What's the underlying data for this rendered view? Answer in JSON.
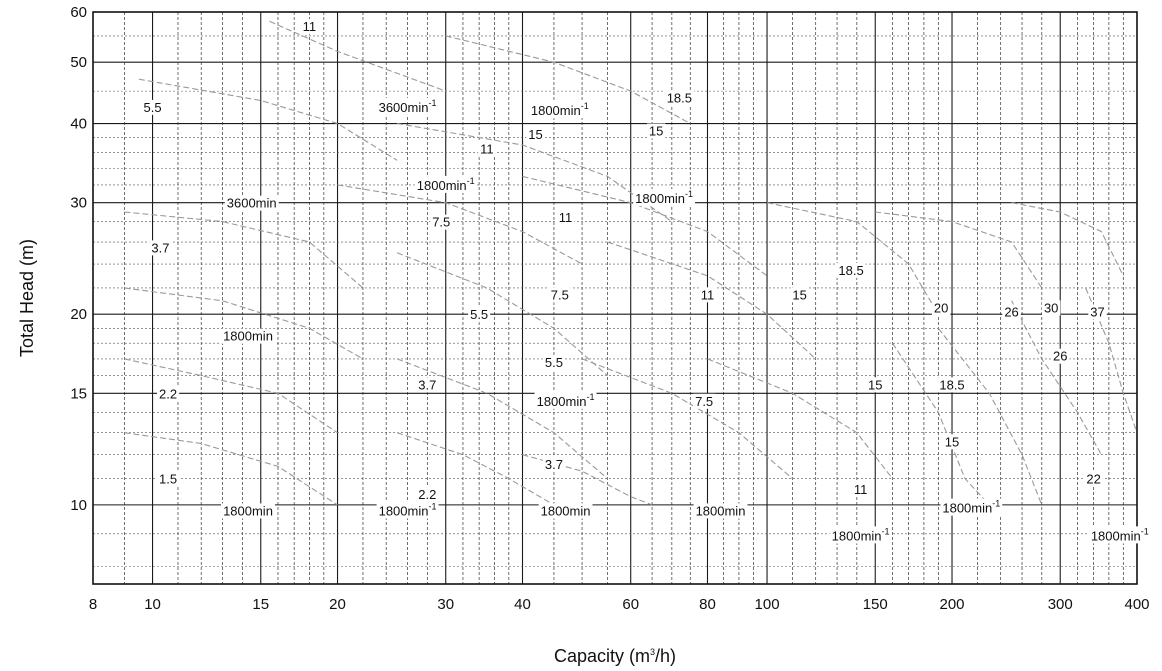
{
  "chart_data": {
    "type": "line",
    "title": "",
    "xlabel": "Capacity (m³/h)",
    "xlabel_parts": {
      "main": "Capacity  (m",
      "sup": "3",
      "tail": "/h)"
    },
    "ylabel": "Total Head  (m)",
    "x_scale": "log",
    "y_scale": "log",
    "xlim": [
      8,
      400
    ],
    "ylim": [
      7.5,
      60
    ],
    "grid": true,
    "x_ticks": [
      8,
      10,
      15,
      20,
      30,
      40,
      60,
      80,
      100,
      150,
      200,
      300,
      400
    ],
    "x_tick_labels": [
      "8",
      "10",
      "15",
      "20",
      "30",
      "40",
      "60",
      "80",
      "100",
      "150",
      "200",
      "300",
      "400"
    ],
    "y_ticks": [
      10,
      15,
      20,
      30,
      40,
      50,
      60
    ],
    "y_tick_labels": [
      "10",
      "15",
      "20",
      "30",
      "40",
      "50",
      "60"
    ],
    "annotations": [
      {
        "text": "11",
        "x": 18,
        "y": 57
      },
      {
        "text": "5.5",
        "x": 10,
        "y": 42.5
      },
      {
        "text": "3600min",
        "sup": "-1",
        "x": 26,
        "y": 42.5
      },
      {
        "text": "1800min",
        "sup": "-1",
        "x": 46,
        "y": 42
      },
      {
        "text": "18.5",
        "x": 72,
        "y": 44
      },
      {
        "text": "15",
        "x": 42,
        "y": 38.5
      },
      {
        "text": "15",
        "x": 66,
        "y": 39
      },
      {
        "text": "11",
        "x": 35,
        "y": 36.5
      },
      {
        "text": "1800min",
        "sup": "-1",
        "x": 30,
        "y": 32
      },
      {
        "text": "3600min",
        "x": 14.5,
        "y": 30
      },
      {
        "text": "1800min",
        "sup": "-1",
        "x": 68,
        "y": 30.5
      },
      {
        "text": "7.5",
        "x": 29.5,
        "y": 28
      },
      {
        "text": "11",
        "x": 47,
        "y": 28.5
      },
      {
        "text": "3.7",
        "x": 10.3,
        "y": 25.5
      },
      {
        "text": "18.5",
        "x": 137,
        "y": 23.5
      },
      {
        "text": "7.5",
        "x": 46,
        "y": 21.5
      },
      {
        "text": "11",
        "x": 80,
        "y": 21.5
      },
      {
        "text": "15",
        "x": 113,
        "y": 21.5
      },
      {
        "text": "20",
        "x": 192,
        "y": 20.5
      },
      {
        "text": "26",
        "x": 250,
        "y": 20.2
      },
      {
        "text": "30",
        "x": 290,
        "y": 20.5
      },
      {
        "text": "37",
        "x": 345,
        "y": 20.2
      },
      {
        "text": "5.5",
        "x": 34,
        "y": 20
      },
      {
        "text": "1800min",
        "x": 14.3,
        "y": 18.5
      },
      {
        "text": "5.5",
        "x": 45,
        "y": 16.8
      },
      {
        "text": "26",
        "x": 300,
        "y": 17.2
      },
      {
        "text": "3.7",
        "x": 28,
        "y": 15.5
      },
      {
        "text": "15",
        "x": 150,
        "y": 15.5
      },
      {
        "text": "18.5",
        "x": 200,
        "y": 15.5
      },
      {
        "text": "2.2",
        "x": 10.6,
        "y": 15
      },
      {
        "text": "1800min",
        "sup": "-1",
        "x": 47,
        "y": 14.6
      },
      {
        "text": "7.5",
        "x": 79,
        "y": 14.6
      },
      {
        "text": "15",
        "x": 200,
        "y": 12.6
      },
      {
        "text": "3.7",
        "x": 45,
        "y": 11.6
      },
      {
        "text": "1.5",
        "x": 10.6,
        "y": 11
      },
      {
        "text": "22",
        "x": 340,
        "y": 11
      },
      {
        "text": "2.2",
        "x": 28,
        "y": 10.4
      },
      {
        "text": "11",
        "x": 142,
        "y": 10.6
      },
      {
        "text": "1800min",
        "x": 14.3,
        "y": 9.8
      },
      {
        "text": "1800min",
        "sup": "-1",
        "x": 26,
        "y": 9.8
      },
      {
        "text": "1800min",
        "x": 47,
        "y": 9.8
      },
      {
        "text": "1800min",
        "x": 84,
        "y": 9.8
      },
      {
        "text": "1800min",
        "sup": "-1",
        "x": 215,
        "y": 9.9
      },
      {
        "text": "1800min",
        "sup": "-1",
        "x": 142,
        "y": 8.95
      },
      {
        "text": "1800min",
        "sup": "-1",
        "x": 375,
        "y": 8.95
      }
    ],
    "performance_curves": [
      {
        "points": [
          [
            15.5,
            58
          ],
          [
            20,
            52
          ],
          [
            30,
            45
          ]
        ]
      },
      {
        "points": [
          [
            9.5,
            47
          ],
          [
            15,
            43.5
          ],
          [
            20,
            40
          ],
          [
            25,
            35
          ]
        ]
      },
      {
        "points": [
          [
            30,
            55
          ],
          [
            45,
            50
          ],
          [
            60,
            45
          ],
          [
            75,
            40
          ]
        ]
      },
      {
        "points": [
          [
            25,
            40
          ],
          [
            40,
            37
          ],
          [
            55,
            33
          ],
          [
            70,
            28
          ]
        ]
      },
      {
        "points": [
          [
            9,
            29
          ],
          [
            13,
            28
          ],
          [
            18,
            26
          ],
          [
            22,
            22
          ]
        ]
      },
      {
        "points": [
          [
            20,
            32
          ],
          [
            30,
            30
          ],
          [
            40,
            27
          ],
          [
            50,
            24
          ]
        ]
      },
      {
        "points": [
          [
            40,
            33
          ],
          [
            60,
            30
          ],
          [
            80,
            27
          ],
          [
            100,
            23
          ]
        ]
      },
      {
        "points": [
          [
            9,
            22
          ],
          [
            13,
            21
          ],
          [
            18,
            19
          ],
          [
            22,
            17
          ]
        ]
      },
      {
        "points": [
          [
            25,
            25
          ],
          [
            35,
            22
          ],
          [
            45,
            19
          ],
          [
            55,
            16
          ]
        ]
      },
      {
        "points": [
          [
            55,
            26
          ],
          [
            80,
            23
          ],
          [
            100,
            20
          ],
          [
            120,
            17
          ]
        ]
      },
      {
        "points": [
          [
            100,
            30
          ],
          [
            140,
            28
          ],
          [
            170,
            24
          ],
          [
            190,
            20
          ]
        ]
      },
      {
        "points": [
          [
            9,
            17
          ],
          [
            12,
            16
          ],
          [
            16,
            15
          ],
          [
            20,
            13
          ]
        ]
      },
      {
        "points": [
          [
            25,
            17
          ],
          [
            35,
            15
          ],
          [
            45,
            13
          ],
          [
            55,
            11
          ]
        ]
      },
      {
        "points": [
          [
            50,
            17
          ],
          [
            70,
            15
          ],
          [
            90,
            13
          ],
          [
            110,
            11
          ]
        ]
      },
      {
        "points": [
          [
            80,
            17
          ],
          [
            110,
            15
          ],
          [
            140,
            13
          ],
          [
            160,
            11
          ]
        ]
      },
      {
        "points": [
          [
            9,
            13
          ],
          [
            12,
            12.5
          ],
          [
            16,
            11.5
          ],
          [
            20,
            10
          ]
        ]
      },
      {
        "points": [
          [
            25,
            13
          ],
          [
            32,
            12
          ],
          [
            38,
            11
          ],
          [
            45,
            10
          ]
        ]
      },
      {
        "points": [
          [
            40,
            12
          ],
          [
            50,
            11.3
          ],
          [
            60,
            10.3
          ],
          [
            65,
            10
          ]
        ]
      },
      {
        "points": [
          [
            150,
            29
          ],
          [
            200,
            28
          ],
          [
            250,
            26
          ],
          [
            280,
            22
          ]
        ]
      },
      {
        "points": [
          [
            250,
            30
          ],
          [
            300,
            29
          ],
          [
            350,
            27
          ],
          [
            380,
            23
          ]
        ]
      },
      {
        "points": [
          [
            160,
            18
          ],
          [
            190,
            14
          ],
          [
            210,
            11
          ],
          [
            230,
            10
          ]
        ]
      },
      {
        "points": [
          [
            190,
            19
          ],
          [
            230,
            15
          ],
          [
            260,
            12
          ],
          [
            280,
            10
          ]
        ]
      },
      {
        "points": [
          [
            250,
            21
          ],
          [
            280,
            17
          ],
          [
            320,
            14
          ],
          [
            350,
            12
          ]
        ]
      },
      {
        "points": [
          [
            330,
            22
          ],
          [
            360,
            18
          ],
          [
            380,
            15
          ],
          [
            400,
            13
          ]
        ]
      }
    ]
  }
}
